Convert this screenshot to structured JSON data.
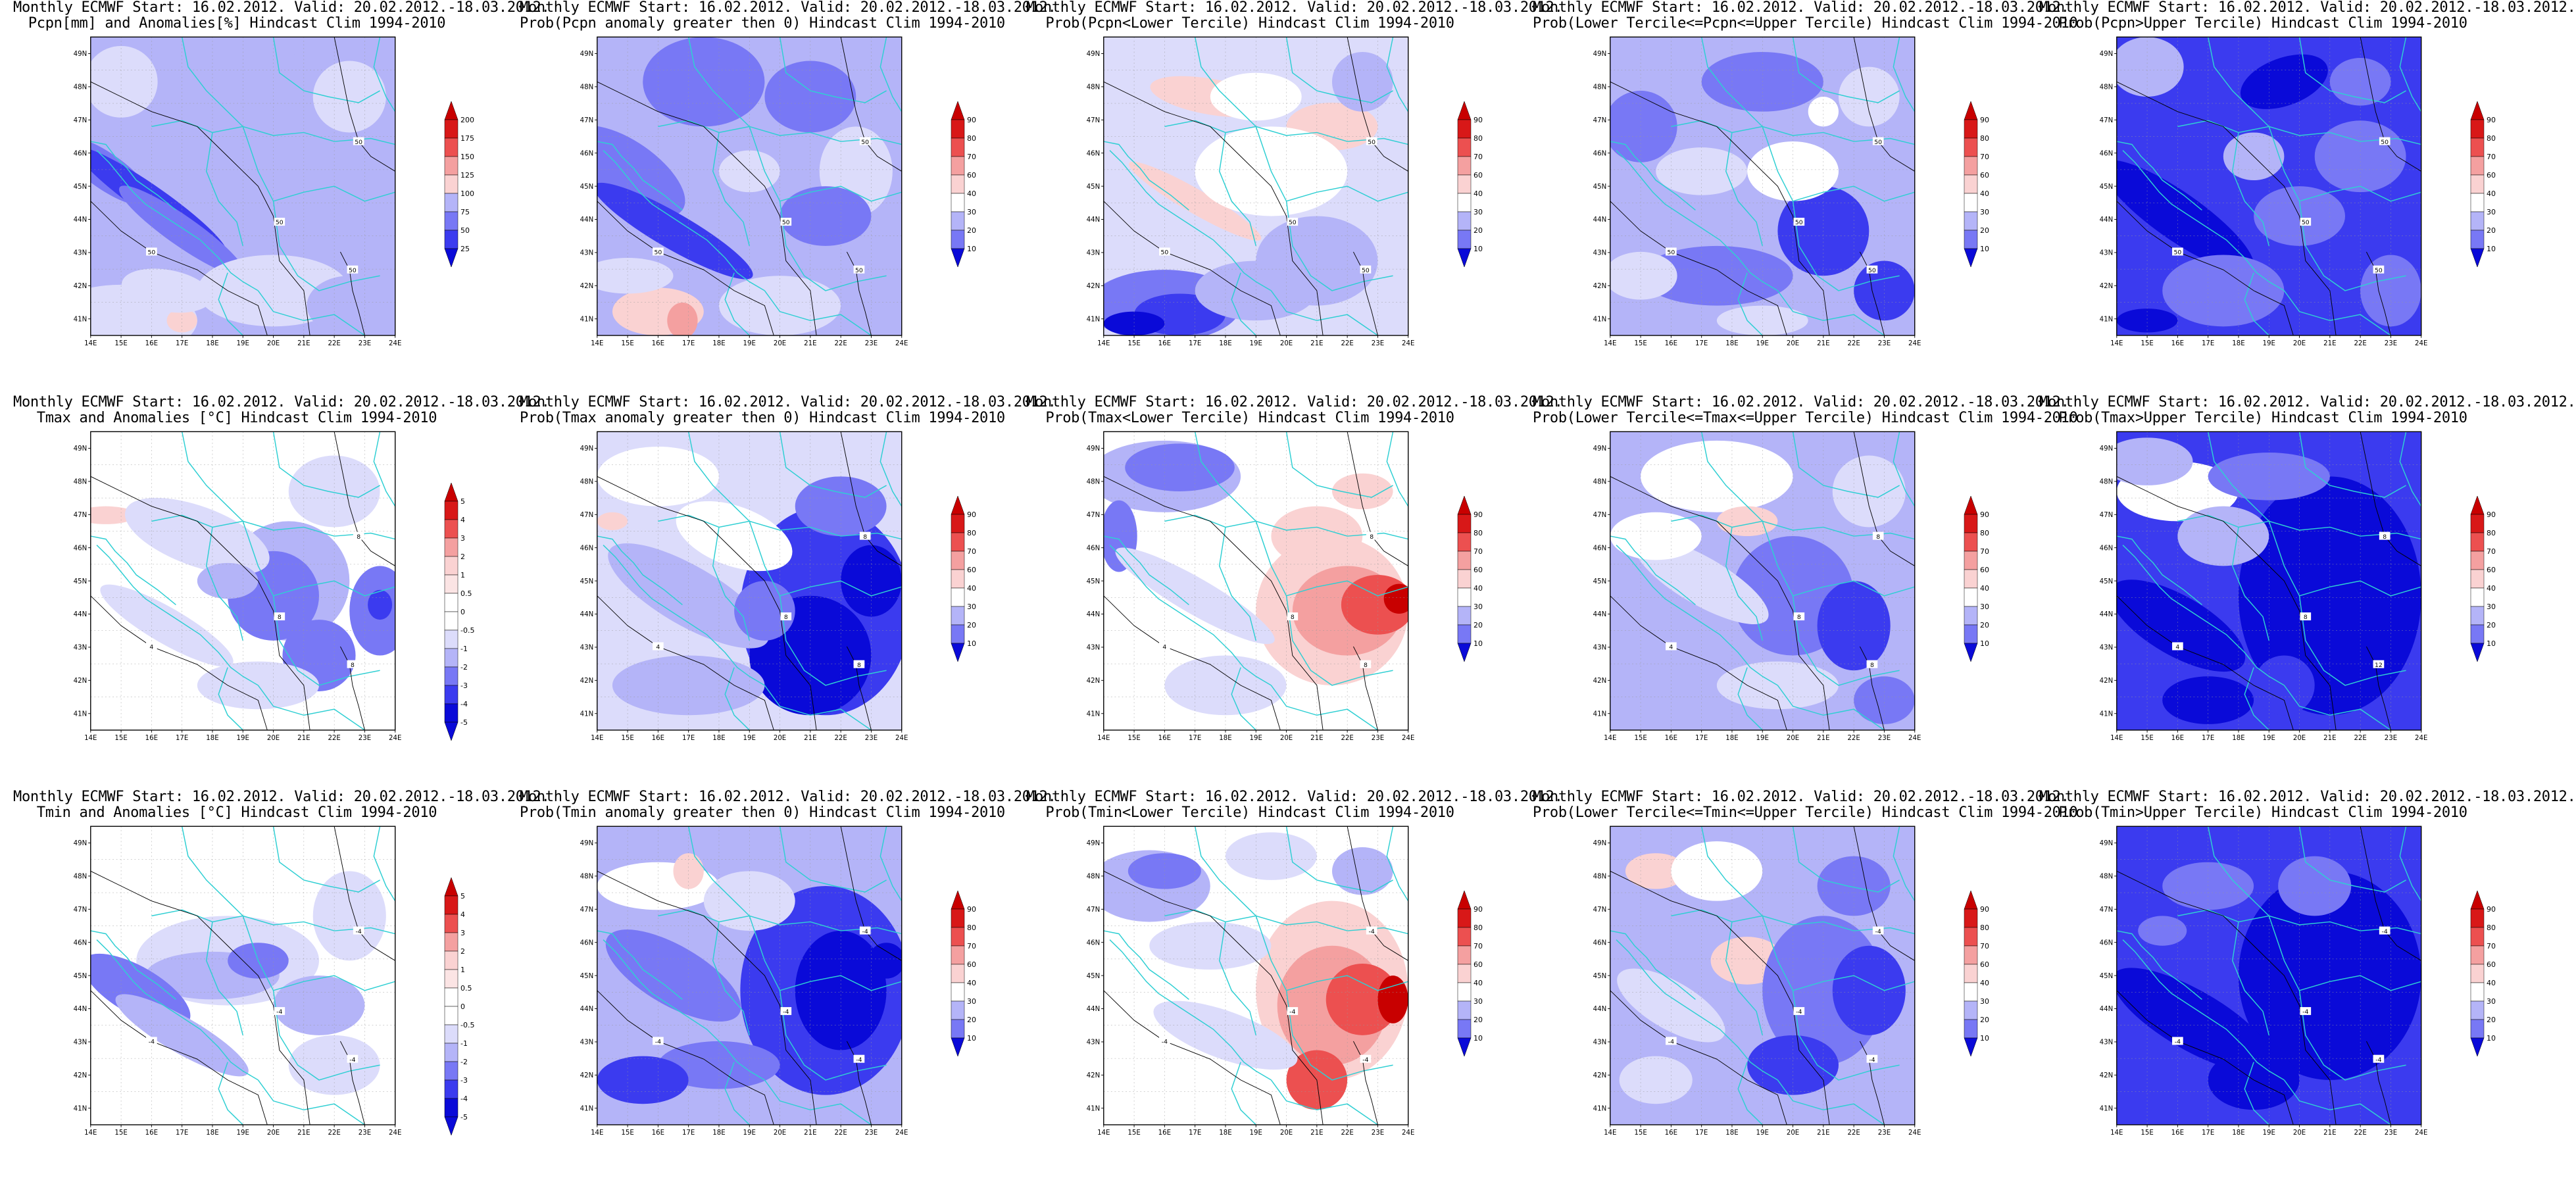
{
  "shared": {
    "lat_labels": [
      "49N",
      "48N",
      "47N",
      "46N",
      "45N",
      "44N",
      "43N",
      "42N",
      "41N"
    ],
    "lon_labels": [
      "14E",
      "15E",
      "16E",
      "17E",
      "18E",
      "19E",
      "20E",
      "21E",
      "22E",
      "23E",
      "24E"
    ],
    "prob_levels": [
      "90",
      "80",
      "70",
      "60",
      "40",
      "30",
      "20",
      "10"
    ],
    "colors": {
      "dark_blue": "#0a0ad8",
      "mid_blue": "#3b3bef",
      "blue": "#7878f5",
      "light_blue": "#b4b4f8",
      "pale_blue": "#dcdcfb",
      "pale_red": "#fad2d2",
      "light_red": "#f4a0a0",
      "red": "#ec5050",
      "dark_red": "#c80000",
      "coast": "#2fcfd3",
      "contour": "#000000"
    }
  },
  "panels": [
    {
      "title1": "Monthly ECMWF Start: 16.02.2012. Valid: 20.02.2012.-18.03.2012.",
      "title2": "Pcpn[mm] and Anomalies[%] Hindcast Clim 1994-2010",
      "cb_labels": [
        "200",
        "175",
        "150",
        "125",
        "100",
        "75",
        "50",
        "25"
      ],
      "contour_labels": [
        "50",
        "50",
        "50",
        "50"
      ],
      "field": "pcpn_anom"
    },
    {
      "title1": "Monthly ECMWF Start: 16.02.2012. Valid: 20.02.2012.-18.03.2012.",
      "title2": "Prob(Pcpn anomaly greater then 0) Hindcast Clim 1994-2010",
      "cb_labels": [
        "90",
        "80",
        "70",
        "60",
        "40",
        "30",
        "20",
        "10"
      ],
      "contour_labels": [
        "50",
        "50",
        "50",
        "50"
      ],
      "field": "pcpn_pos"
    },
    {
      "title1": "Monthly ECMWF Start: 16.02.2012. Valid: 20.02.2012.-18.03.2012.",
      "title2": "Prob(Pcpn<Lower Tercile) Hindcast Clim 1994-2010",
      "cb_labels": [
        "90",
        "80",
        "70",
        "60",
        "40",
        "30",
        "20",
        "10"
      ],
      "contour_labels": [
        "50",
        "50",
        "50",
        "50"
      ],
      "field": "pcpn_low"
    },
    {
      "title1": "Monthly ECMWF Start: 16.02.2012. Valid: 20.02.2012.-18.03.2012.",
      "title2": "Prob(Lower Tercile<=Pcpn<=Upper Tercile) Hindcast Clim 1994-2010",
      "cb_labels": [
        "90",
        "80",
        "70",
        "60",
        "40",
        "30",
        "20",
        "10"
      ],
      "contour_labels": [
        "50",
        "50",
        "50",
        "50"
      ],
      "field": "pcpn_mid"
    },
    {
      "title1": "Monthly ECMWF Start: 16.02.2012. Valid: 20.02.2012.-18.03.2012.",
      "title2": "Prob(Pcpn>Upper Tercile) Hindcast Clim 1994-2010",
      "cb_labels": [
        "90",
        "80",
        "70",
        "60",
        "40",
        "30",
        "20",
        "10"
      ],
      "contour_labels": [
        "50",
        "50",
        "50",
        "50"
      ],
      "field": "pcpn_up"
    },
    {
      "title1": "Monthly ECMWF Start: 16.02.2012. Valid: 20.02.2012.-18.03.2012.",
      "title2": "Tmax and Anomalies [°C] Hindcast Clim 1994-2010",
      "cb_labels": [
        "5",
        "4",
        "3",
        "2",
        "1",
        "0.5",
        "0",
        "-0.5",
        "-1",
        "-2",
        "-3",
        "-4",
        "-5"
      ],
      "contour_labels": [
        "8",
        "4",
        "8",
        "8"
      ],
      "field": "tmax_anom"
    },
    {
      "title1": "Monthly ECMWF Start: 16.02.2012. Valid: 20.02.2012.-18.03.2012.",
      "title2": "Prob(Tmax anomaly greater then 0) Hindcast Clim 1994-2010",
      "cb_labels": [
        "90",
        "80",
        "70",
        "60",
        "40",
        "30",
        "20",
        "10"
      ],
      "contour_labels": [
        "8",
        "4",
        "8",
        "8"
      ],
      "field": "tmax_pos"
    },
    {
      "title1": "Monthly ECMWF Start: 16.02.2012. Valid: 20.02.2012.-18.03.2012.",
      "title2": "Prob(Tmax<Lower Tercile) Hindcast Clim 1994-2010",
      "cb_labels": [
        "90",
        "80",
        "70",
        "60",
        "40",
        "30",
        "20",
        "10"
      ],
      "contour_labels": [
        "8",
        "4",
        "8",
        "8"
      ],
      "field": "tmax_low"
    },
    {
      "title1": "Monthly ECMWF Start: 16.02.2012. Valid: 20.02.2012.-18.03.2012.",
      "title2": "Prob(Lower Tercile<=Tmax<=Upper Tercile) Hindcast Clim 1994-2010",
      "cb_labels": [
        "90",
        "80",
        "70",
        "60",
        "40",
        "30",
        "20",
        "10"
      ],
      "contour_labels": [
        "8",
        "4",
        "8",
        "8"
      ],
      "field": "tmax_mid"
    },
    {
      "title1": "Monthly ECMWF Start: 16.02.2012. Valid: 20.02.2012.-18.03.2012.",
      "title2": "Prob(Tmax>Upper Tercile) Hindcast Clim 1994-2010",
      "cb_labels": [
        "90",
        "80",
        "70",
        "60",
        "40",
        "30",
        "20",
        "10"
      ],
      "contour_labels": [
        "8",
        "4",
        "8",
        "12"
      ],
      "field": "tmax_up"
    },
    {
      "title1": "Monthly ECMWF Start: 16.02.2012. Valid: 20.02.2012.-18.03.2012.",
      "title2": "Tmin and Anomalies [°C] Hindcast Clim 1994-2010",
      "cb_labels": [
        "5",
        "4",
        "3",
        "2",
        "1",
        "0.5",
        "0",
        "-0.5",
        "-1",
        "-2",
        "-3",
        "-4",
        "-5"
      ],
      "contour_labels": [
        "-4",
        "-4",
        "-4",
        "-4"
      ],
      "field": "tmin_anom"
    },
    {
      "title1": "Monthly ECMWF Start: 16.02.2012. Valid: 20.02.2012.-18.03.2012.",
      "title2": "Prob(Tmin anomaly greater then 0) Hindcast Clim 1994-2010",
      "cb_labels": [
        "90",
        "80",
        "70",
        "60",
        "40",
        "30",
        "20",
        "10"
      ],
      "contour_labels": [
        "-4",
        "-4",
        "-4",
        "-4"
      ],
      "field": "tmin_pos"
    },
    {
      "title1": "Monthly ECMWF Start: 16.02.2012. Valid: 20.02.2012.-18.03.2012.",
      "title2": "Prob(Tmin<Lower Tercile) Hindcast Clim 1994-2010",
      "cb_labels": [
        "90",
        "80",
        "70",
        "60",
        "40",
        "30",
        "20",
        "10"
      ],
      "contour_labels": [
        "-4",
        "-4",
        "-4",
        "-4"
      ],
      "field": "tmin_low"
    },
    {
      "title1": "Monthly ECMWF Start: 16.02.2012. Valid: 20.02.2012.-18.03.2012.",
      "title2": "Prob(Lower Tercile<=Tmin<=Upper Tercile) Hindcast Clim 1994-2010",
      "cb_labels": [
        "90",
        "80",
        "70",
        "60",
        "40",
        "30",
        "20",
        "10"
      ],
      "contour_labels": [
        "-4",
        "-4",
        "-4",
        "-4"
      ],
      "field": "tmin_mid"
    },
    {
      "title1": "Monthly ECMWF Start: 16.02.2012. Valid: 20.02.2012.-18.03.2012.",
      "title2": "Prob(Tmin>Upper Tercile) Hindcast Clim 1994-2010",
      "cb_labels": [
        "90",
        "80",
        "70",
        "60",
        "40",
        "30",
        "20",
        "10"
      ],
      "contour_labels": [
        "-4",
        "-4",
        "-4",
        "-4"
      ],
      "field": "tmin_up"
    }
  ]
}
